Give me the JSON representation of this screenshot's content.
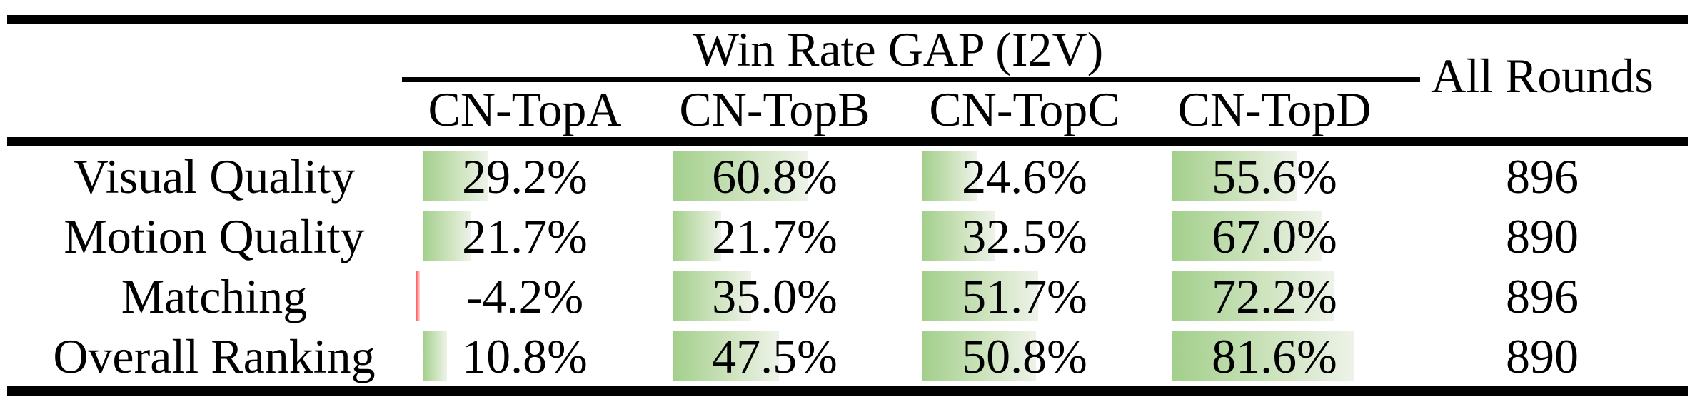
{
  "figure": {
    "title": "Win Rate GAP (I2V)",
    "all_rounds_header": "All Rounds",
    "columns": [
      "CN-TopA",
      "CN-TopB",
      "CN-TopC",
      "CN-TopD"
    ],
    "rows": [
      {
        "label": "Visual Quality",
        "cells": [
          {
            "value": 29.2,
            "text": "29.2%"
          },
          {
            "value": 60.8,
            "text": "60.8%"
          },
          {
            "value": 24.6,
            "text": "24.6%"
          },
          {
            "value": 55.6,
            "text": "55.6%"
          }
        ],
        "all_rounds": "896"
      },
      {
        "label": "Motion Quality",
        "cells": [
          {
            "value": 21.7,
            "text": "21.7%"
          },
          {
            "value": 21.7,
            "text": "21.7%"
          },
          {
            "value": 32.5,
            "text": "32.5%"
          },
          {
            "value": 67.0,
            "text": "67.0%"
          }
        ],
        "all_rounds": "890"
      },
      {
        "label": "Matching",
        "cells": [
          {
            "value": -4.2,
            "text": "-4.2%"
          },
          {
            "value": 35.0,
            "text": "35.0%"
          },
          {
            "value": 51.7,
            "text": "51.7%"
          },
          {
            "value": 72.2,
            "text": "72.2%"
          }
        ],
        "all_rounds": "896"
      },
      {
        "label": "Overall Ranking",
        "cells": [
          {
            "value": 10.8,
            "text": "10.8%"
          },
          {
            "value": 47.5,
            "text": "47.5%"
          },
          {
            "value": 50.8,
            "text": "50.8%"
          },
          {
            "value": 81.6,
            "text": "81.6%"
          }
        ],
        "all_rounds": "890"
      }
    ]
  },
  "chart_data": {
    "type": "table",
    "title": "Win Rate GAP (I2V)",
    "categories": [
      "Visual Quality",
      "Motion Quality",
      "Matching",
      "Overall Ranking"
    ],
    "series": [
      {
        "name": "CN-TopA",
        "values": [
          29.2,
          21.7,
          -4.2,
          10.8
        ]
      },
      {
        "name": "CN-TopB",
        "values": [
          60.8,
          21.7,
          35.0,
          47.5
        ]
      },
      {
        "name": "CN-TopC",
        "values": [
          24.6,
          32.5,
          51.7,
          50.8
        ]
      },
      {
        "name": "CN-TopD",
        "values": [
          55.6,
          67.0,
          72.2,
          81.6
        ]
      },
      {
        "name": "All Rounds",
        "values": [
          896,
          890,
          896,
          890
        ]
      }
    ],
    "unit": "%",
    "notes": "in-cell data bars: green gradient for positive win-rate gaps, thin red bar for negative value"
  },
  "colors": {
    "bar_green": "#a3cf8c",
    "bar_green_mid": "#cde3bd",
    "bar_green_fade": "#eef3e9",
    "bar_red": "#ff4343",
    "bar_red_fade": "#ffd6d6",
    "rule": "#000000",
    "text": "#000000",
    "background": "#ffffff"
  }
}
